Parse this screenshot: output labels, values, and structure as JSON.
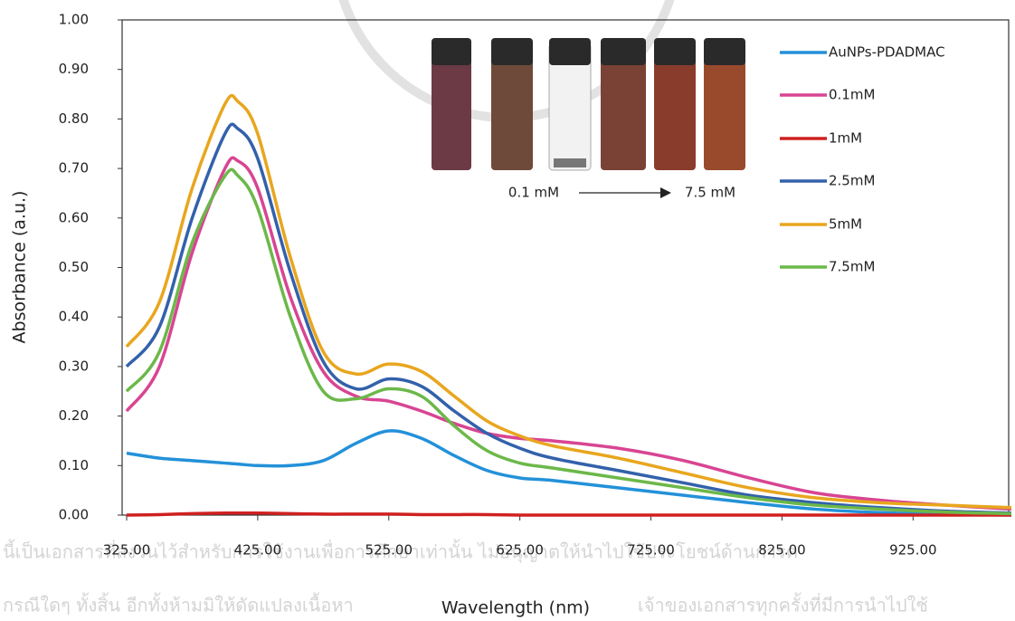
{
  "chart_data": {
    "type": "line",
    "xlabel": "Wavelength (nm)",
    "ylabel": "Absorbance (a.u.)",
    "x": [
      325,
      350,
      375,
      400,
      410,
      425,
      450,
      475,
      500,
      525,
      550,
      575,
      600,
      625,
      650,
      700,
      750,
      800,
      850,
      900,
      950,
      1000
    ],
    "series": [
      {
        "name": "AuNPs-PDADMAC",
        "color": "#2391d9",
        "values": [
          0.125,
          0.115,
          0.11,
          0.105,
          0.103,
          0.1,
          0.1,
          0.11,
          0.145,
          0.17,
          0.155,
          0.12,
          0.09,
          0.075,
          0.07,
          0.055,
          0.04,
          0.025,
          0.012,
          0.005,
          0.002,
          0.0
        ]
      },
      {
        "name": "0.1mM",
        "color": "#d84592",
        "values": [
          0.21,
          0.3,
          0.53,
          0.7,
          0.715,
          0.66,
          0.44,
          0.29,
          0.24,
          0.23,
          0.21,
          0.185,
          0.165,
          0.155,
          0.15,
          0.135,
          0.11,
          0.075,
          0.045,
          0.03,
          0.02,
          0.012
        ]
      },
      {
        "name": "1mM",
        "color": "#d02020",
        "values": [
          0.0,
          0.001,
          0.003,
          0.004,
          0.004,
          0.004,
          0.003,
          0.002,
          0.002,
          0.002,
          0.001,
          0.001,
          0.001,
          0.0,
          0.0,
          0.0,
          0.0,
          0.0,
          0.0,
          0.0,
          0.0,
          0.0
        ]
      },
      {
        "name": "2.5mM",
        "color": "#3361ab",
        "values": [
          0.3,
          0.38,
          0.6,
          0.77,
          0.78,
          0.72,
          0.49,
          0.31,
          0.255,
          0.275,
          0.26,
          0.21,
          0.165,
          0.135,
          0.115,
          0.09,
          0.065,
          0.04,
          0.025,
          0.015,
          0.008,
          0.004
        ]
      },
      {
        "name": "5mM",
        "color": "#e8a61e",
        "values": [
          0.34,
          0.43,
          0.66,
          0.83,
          0.835,
          0.77,
          0.52,
          0.33,
          0.285,
          0.305,
          0.29,
          0.24,
          0.19,
          0.16,
          0.14,
          0.115,
          0.085,
          0.055,
          0.035,
          0.025,
          0.02,
          0.015
        ]
      },
      {
        "name": "7.5mM",
        "color": "#6cb84a",
        "values": [
          0.25,
          0.33,
          0.55,
          0.685,
          0.685,
          0.62,
          0.4,
          0.25,
          0.235,
          0.255,
          0.24,
          0.18,
          0.13,
          0.105,
          0.095,
          0.075,
          0.055,
          0.035,
          0.02,
          0.012,
          0.006,
          0.003
        ]
      }
    ],
    "xlim": [
      325,
      1000
    ],
    "xticks": [
      {
        "value": 325,
        "label": "325.00"
      },
      {
        "value": 425,
        "label": "425.00"
      },
      {
        "value": 525,
        "label": "525.00"
      },
      {
        "value": 625,
        "label": "625.00"
      },
      {
        "value": 725,
        "label": "725.00"
      },
      {
        "value": 825,
        "label": "825.00"
      },
      {
        "value": 925,
        "label": "925.00"
      }
    ],
    "ylim": [
      0,
      1
    ],
    "yticks": [
      {
        "value": 0,
        "label": "0.00"
      },
      {
        "value": 0.1,
        "label": "0.10"
      },
      {
        "value": 0.2,
        "label": "0.20"
      },
      {
        "value": 0.3,
        "label": "0.30"
      },
      {
        "value": 0.4,
        "label": "0.40"
      },
      {
        "value": 0.5,
        "label": "0.50"
      },
      {
        "value": 0.6,
        "label": "0.60"
      },
      {
        "value": 0.7,
        "label": "0.70"
      },
      {
        "value": 0.8,
        "label": "0.80"
      },
      {
        "value": 0.9,
        "label": "0.90"
      },
      {
        "value": 1,
        "label": "1.00"
      }
    ],
    "legend": "right",
    "inset_labels": [
      "0.1 mM",
      "7.5 mM"
    ]
  },
  "watermark": [
    "นี้เป็นเอกสารที่สงวนไว้สำหรับการใช้งานเพื่อการศึกษาเท่านั้น ไม่อนุญาตให้นำไปใช้ประโยชน์ด้านการค",
    "กรณีใดๆ ทั้งสิ้น อีกทั้งห้ามมิให้ดัดแปลงเนื้อหา",
    "เจ้าของเอกสารทุกครั้งที่มีการนำไปใช้"
  ]
}
